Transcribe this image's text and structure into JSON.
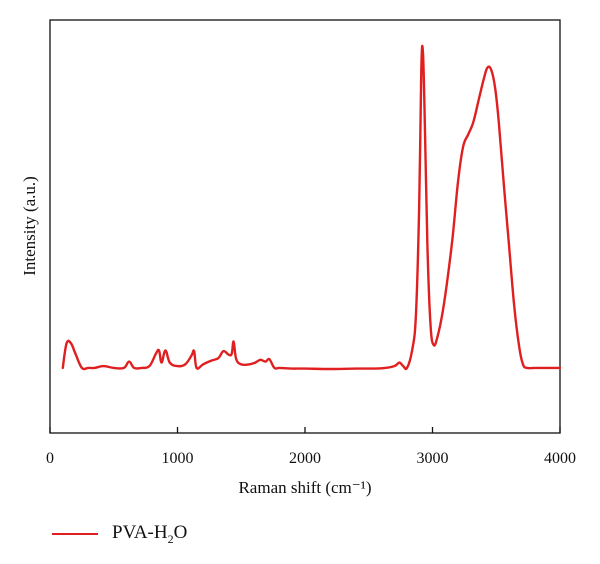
{
  "chart_data": {
    "type": "line",
    "xlabel": "Raman shift (cm⁻¹)",
    "ylabel": "Intensity (a.u.)",
    "xlim": [
      0,
      4000
    ],
    "ylim": [
      0,
      1
    ],
    "xticks": [
      0,
      1000,
      2000,
      3000,
      4000
    ],
    "y_tick_labels_shown": false,
    "grid": false,
    "legend_position": "bottom-left",
    "series": [
      {
        "name": "PVA-H2O",
        "name_base": "PVA-H",
        "name_sub": "2",
        "name_tail": "O",
        "color": "#e02020",
        "points": [
          [
            100,
            0.1
          ],
          [
            130,
            0.17
          ],
          [
            165,
            0.17
          ],
          [
            200,
            0.14
          ],
          [
            250,
            0.1
          ],
          [
            300,
            0.1
          ],
          [
            350,
            0.1
          ],
          [
            420,
            0.105
          ],
          [
            500,
            0.1
          ],
          [
            580,
            0.1
          ],
          [
            620,
            0.118
          ],
          [
            660,
            0.1
          ],
          [
            720,
            0.1
          ],
          [
            780,
            0.105
          ],
          [
            830,
            0.14
          ],
          [
            855,
            0.15
          ],
          [
            875,
            0.115
          ],
          [
            905,
            0.15
          ],
          [
            940,
            0.115
          ],
          [
            1000,
            0.105
          ],
          [
            1060,
            0.11
          ],
          [
            1110,
            0.135
          ],
          [
            1130,
            0.148
          ],
          [
            1150,
            0.1
          ],
          [
            1200,
            0.11
          ],
          [
            1260,
            0.12
          ],
          [
            1320,
            0.128
          ],
          [
            1360,
            0.148
          ],
          [
            1400,
            0.138
          ],
          [
            1425,
            0.14
          ],
          [
            1440,
            0.175
          ],
          [
            1460,
            0.125
          ],
          [
            1500,
            0.11
          ],
          [
            1560,
            0.11
          ],
          [
            1610,
            0.115
          ],
          [
            1650,
            0.123
          ],
          [
            1690,
            0.118
          ],
          [
            1720,
            0.125
          ],
          [
            1760,
            0.1
          ],
          [
            1800,
            0.1
          ],
          [
            1900,
            0.098
          ],
          [
            2000,
            0.098
          ],
          [
            2200,
            0.097
          ],
          [
            2400,
            0.098
          ],
          [
            2600,
            0.099
          ],
          [
            2700,
            0.105
          ],
          [
            2740,
            0.115
          ],
          [
            2770,
            0.105
          ],
          [
            2800,
            0.1
          ],
          [
            2840,
            0.15
          ],
          [
            2870,
            0.25
          ],
          [
            2895,
            0.55
          ],
          [
            2912,
            0.95
          ],
          [
            2925,
            1.0
          ],
          [
            2940,
            0.8
          ],
          [
            2960,
            0.45
          ],
          [
            2985,
            0.22
          ],
          [
            3010,
            0.165
          ],
          [
            3040,
            0.19
          ],
          [
            3080,
            0.26
          ],
          [
            3120,
            0.36
          ],
          [
            3160,
            0.48
          ],
          [
            3200,
            0.63
          ],
          [
            3240,
            0.73
          ],
          [
            3280,
            0.765
          ],
          [
            3320,
            0.8
          ],
          [
            3360,
            0.86
          ],
          [
            3400,
            0.92
          ],
          [
            3430,
            0.955
          ],
          [
            3460,
            0.95
          ],
          [
            3490,
            0.9
          ],
          [
            3520,
            0.8
          ],
          [
            3560,
            0.62
          ],
          [
            3600,
            0.45
          ],
          [
            3640,
            0.28
          ],
          [
            3680,
            0.16
          ],
          [
            3710,
            0.11
          ],
          [
            3740,
            0.1
          ],
          [
            3800,
            0.1
          ],
          [
            3850,
            0.1
          ],
          [
            3900,
            0.1
          ],
          [
            4000,
            0.1
          ]
        ]
      }
    ]
  }
}
